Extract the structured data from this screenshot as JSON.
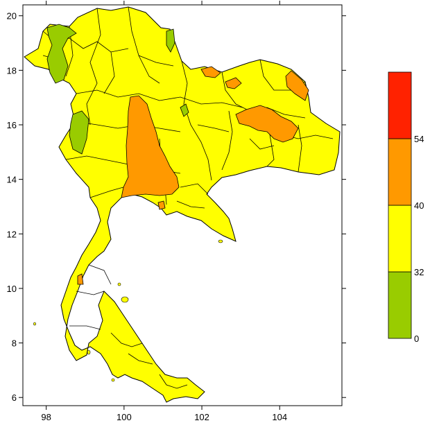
{
  "map": {
    "x_ticks": [
      "98",
      "100",
      "102",
      "104"
    ],
    "y_ticks": [
      "6",
      "8",
      "10",
      "12",
      "14",
      "16",
      "18",
      "20"
    ],
    "x_range": [
      97.4,
      105.6
    ],
    "y_range": [
      5.7,
      20.4
    ],
    "region": "Thailand (province boundaries)"
  },
  "legend": {
    "bins": [
      {
        "label": "0",
        "color": "#99cc00"
      },
      {
        "label": "32",
        "color": "#ffff00"
      },
      {
        "label": "40",
        "color": "#ff9900"
      },
      {
        "label": "54",
        "color": "#ff2200"
      }
    ]
  },
  "colors": {
    "land": "#ffff00",
    "low": "#99cc00",
    "mid_high": "#ff9900",
    "top": "#ff2200",
    "border": "#000000"
  }
}
